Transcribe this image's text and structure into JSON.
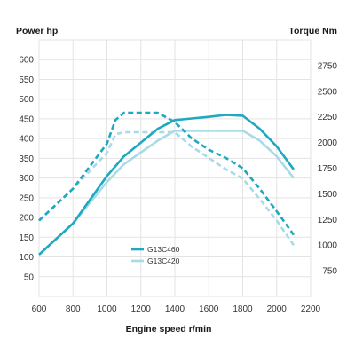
{
  "chart_data": {
    "type": "line",
    "title": "",
    "xlabel": "Engine speed r/min",
    "ylabel_left": "Power hp",
    "ylabel_right": "Torque Nm",
    "xlim": [
      600,
      2200
    ],
    "x_ticks": [
      600,
      800,
      1000,
      1200,
      1400,
      1600,
      1800,
      2000,
      2200
    ],
    "ylim_left": [
      0,
      650
    ],
    "y_ticks_left": [
      50,
      100,
      150,
      200,
      250,
      300,
      350,
      400,
      450,
      500,
      550,
      600
    ],
    "ylim_right": [
      500,
      3000
    ],
    "y_ticks_right": [
      750,
      1000,
      1250,
      1500,
      1750,
      2000,
      2250,
      2500,
      2750
    ],
    "grid": true,
    "legend_position": "lower-center",
    "series": [
      {
        "name": "G13C460",
        "metric": "power",
        "axis": "left",
        "line_style": "solid",
        "color": "#1fa8c0",
        "x": [
          600,
          800,
          1000,
          1100,
          1200,
          1300,
          1400,
          1500,
          1600,
          1700,
          1800,
          1900,
          2000,
          2100
        ],
        "y": [
          106,
          185,
          305,
          355,
          390,
          425,
          447,
          451,
          455,
          460,
          458,
          425,
          380,
          322
        ]
      },
      {
        "name": "G13C420",
        "metric": "power",
        "axis": "left",
        "line_style": "solid",
        "color": "#a8dbe6",
        "x": [
          600,
          800,
          1000,
          1100,
          1200,
          1300,
          1400,
          1500,
          1600,
          1700,
          1800,
          1900,
          2000,
          2100
        ],
        "y": [
          106,
          185,
          290,
          335,
          365,
          395,
          420,
          420,
          420,
          420,
          420,
          395,
          355,
          300
        ]
      },
      {
        "name": "G13C460",
        "metric": "torque",
        "axis": "right",
        "line_style": "dashed",
        "color": "#1fa8c0",
        "x": [
          600,
          800,
          1000,
          1050,
          1100,
          1200,
          1300,
          1400,
          1500,
          1600,
          1700,
          1800,
          1900,
          2000,
          2100
        ],
        "y": [
          1240,
          1550,
          1990,
          2220,
          2290,
          2290,
          2290,
          2200,
          2040,
          1930,
          1850,
          1750,
          1550,
          1330,
          1100
        ]
      },
      {
        "name": "G13C420",
        "metric": "torque",
        "axis": "right",
        "line_style": "dashed",
        "color": "#a8dbe6",
        "x": [
          600,
          800,
          1000,
          1050,
          1100,
          1200,
          1300,
          1400,
          1500,
          1600,
          1700,
          1800,
          1900,
          2000,
          2100
        ],
        "y": [
          1240,
          1550,
          1900,
          2080,
          2100,
          2100,
          2100,
          2100,
          1960,
          1850,
          1740,
          1650,
          1450,
          1240,
          1000
        ]
      }
    ],
    "legend": [
      {
        "label": "G13C460",
        "color": "#1fa8c0"
      },
      {
        "label": "G13C420",
        "color": "#a8dbe6"
      }
    ]
  }
}
